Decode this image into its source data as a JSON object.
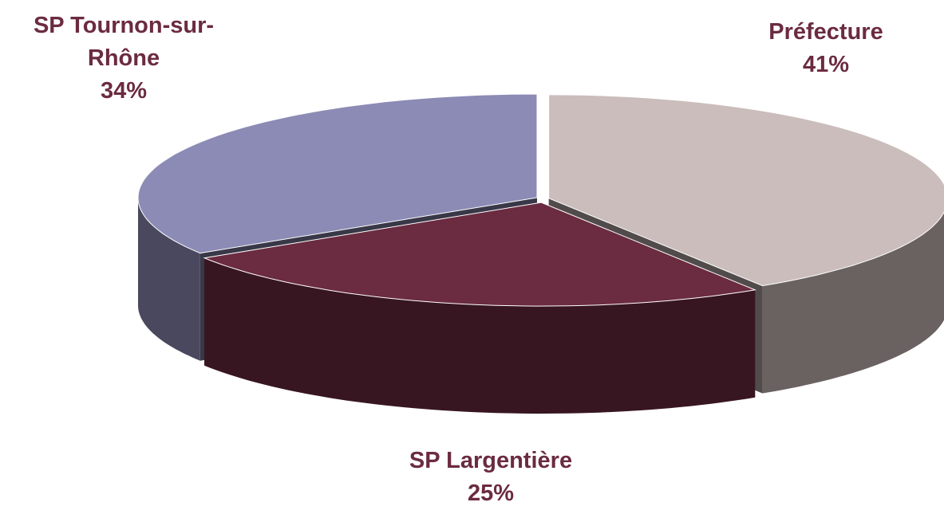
{
  "chart_data": {
    "type": "pie3d",
    "categories": [
      "Préfecture",
      "SP Largentière",
      "SP Tournon-sur-Rhône"
    ],
    "values": [
      41,
      25,
      34
    ],
    "value_labels": [
      "41%",
      "25%",
      "34%"
    ],
    "colors": [
      "#cbbdbb",
      "#6b2b40",
      "#8c8bb5"
    ]
  }
}
